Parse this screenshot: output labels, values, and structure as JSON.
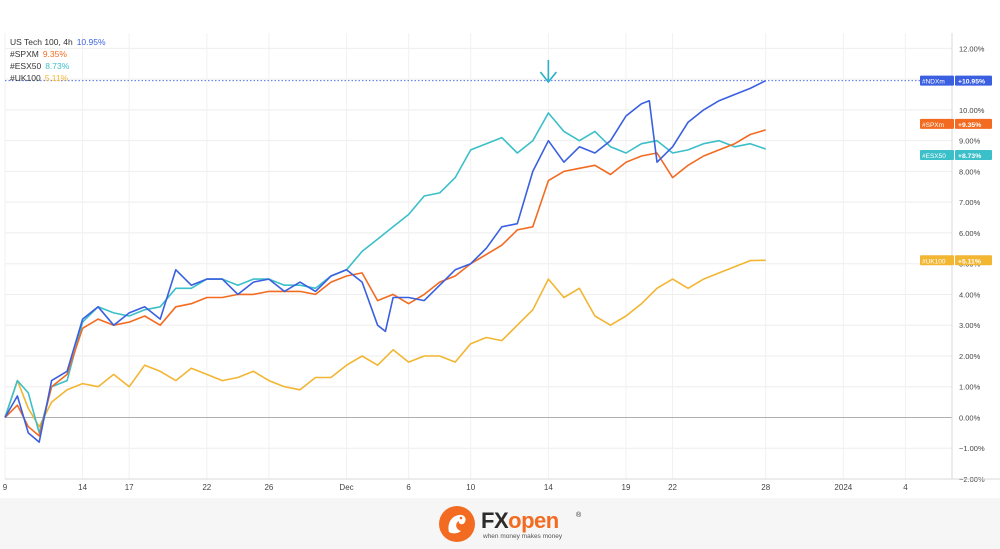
{
  "legend": [
    {
      "name": "US Tech 100, 4h",
      "value": "10.95%",
      "color": "#3a5fe0"
    },
    {
      "name": "#SPXM",
      "value": "9.35%",
      "color": "#f26b21"
    },
    {
      "name": "#ESX50",
      "value": "8.73%",
      "color": "#3bbfc9"
    },
    {
      "name": "#UK100",
      "value": "5.11%",
      "color": "#f2b632"
    }
  ],
  "logo": {
    "brand_part1": "FX",
    "brand_part2": "open",
    "registered": "®",
    "tagline": "when money makes money"
  },
  "chart_data": {
    "type": "line",
    "x_ticks": [
      "9",
      "14",
      "17",
      "22",
      "26",
      "Dec",
      "6",
      "10",
      "14",
      "19",
      "22",
      "28",
      "2024",
      "4"
    ],
    "x_tick_positions": [
      0,
      5,
      8,
      13,
      17,
      22,
      26,
      30,
      35,
      40,
      43,
      49,
      54,
      58
    ],
    "xlim": [
      0,
      61
    ],
    "ylim": [
      -2,
      12.5
    ],
    "y_ticks": [
      "12.00%",
      "11.00%",
      "10.00%",
      "9.00%",
      "8.00%",
      "7.00%",
      "6.00%",
      "5.00%",
      "4.00%",
      "3.00%",
      "2.00%",
      "1.00%",
      "0.00%",
      "−1.00%",
      "−2.00%"
    ],
    "y_tick_values": [
      12,
      11,
      10,
      9,
      8,
      7,
      6,
      5,
      4,
      3,
      2,
      1,
      0,
      -1,
      -2
    ],
    "marker_x": 35,
    "series": [
      {
        "name": "#NDXm",
        "label": "+10.95%",
        "color": "#3a5fe0",
        "x": [
          0,
          0.8,
          1.5,
          2.2,
          3,
          4,
          5,
          6,
          7,
          8,
          9,
          10,
          11,
          12,
          13,
          14,
          15,
          16,
          17,
          18,
          19,
          20,
          21,
          22,
          23,
          24,
          24.5,
          25,
          26,
          27,
          28,
          29,
          30,
          31,
          32,
          33,
          34,
          35,
          36,
          37,
          38,
          39,
          40,
          41,
          41.5,
          42,
          43,
          44,
          45,
          46,
          47,
          48,
          49
        ],
        "y": [
          0,
          0.7,
          -0.5,
          -0.8,
          1.2,
          1.5,
          3.2,
          3.6,
          3.0,
          3.4,
          3.6,
          3.2,
          4.8,
          4.3,
          4.5,
          4.5,
          4.0,
          4.4,
          4.5,
          4.1,
          4.4,
          4.1,
          4.6,
          4.8,
          4.4,
          3.0,
          2.8,
          3.9,
          3.9,
          3.8,
          4.3,
          4.8,
          5.0,
          5.5,
          6.2,
          6.3,
          8.0,
          9.0,
          8.3,
          8.8,
          8.6,
          9.0,
          9.8,
          10.2,
          10.3,
          8.3,
          8.8,
          9.6,
          10.0,
          10.3,
          10.5,
          10.7,
          10.95
        ]
      },
      {
        "name": "#SPXm",
        "label": "+9.35%",
        "color": "#f26b21",
        "x": [
          0,
          0.8,
          1.5,
          2.2,
          3,
          4,
          5,
          6,
          7,
          8,
          9,
          10,
          11,
          12,
          13,
          14,
          15,
          16,
          17,
          18,
          19,
          20,
          21,
          22,
          23,
          24,
          25,
          26,
          27,
          28,
          29,
          30,
          31,
          32,
          33,
          34,
          35,
          36,
          37,
          38,
          39,
          40,
          41,
          42,
          43,
          44,
          45,
          46,
          47,
          48,
          49
        ],
        "y": [
          0,
          0.4,
          -0.3,
          -0.6,
          1.0,
          1.4,
          2.9,
          3.2,
          3.0,
          3.1,
          3.3,
          3.0,
          3.6,
          3.7,
          3.9,
          3.9,
          4.0,
          4.0,
          4.1,
          4.1,
          4.1,
          4.0,
          4.4,
          4.6,
          4.7,
          3.8,
          4.0,
          3.7,
          4.0,
          4.4,
          4.6,
          5.0,
          5.3,
          5.6,
          6.1,
          6.2,
          7.7,
          8.0,
          8.1,
          8.2,
          7.9,
          8.3,
          8.5,
          8.6,
          7.8,
          8.2,
          8.5,
          8.7,
          8.9,
          9.2,
          9.35
        ]
      },
      {
        "name": "#ESX50",
        "label": "+8.73%",
        "color": "#3bbfc9",
        "x": [
          0,
          0.8,
          1.5,
          2.2,
          3,
          4,
          5,
          6,
          7,
          8,
          9,
          10,
          11,
          12,
          13,
          14,
          15,
          16,
          17,
          18,
          19,
          20,
          21,
          22,
          23,
          24,
          25,
          26,
          27,
          28,
          29,
          30,
          31,
          32,
          33,
          34,
          35,
          36,
          37,
          38,
          39,
          40,
          41,
          42,
          43,
          44,
          45,
          46,
          47,
          48,
          49
        ],
        "y": [
          0,
          1.2,
          0.8,
          -0.5,
          1.0,
          1.2,
          3.1,
          3.6,
          3.4,
          3.3,
          3.5,
          3.6,
          4.2,
          4.2,
          4.5,
          4.5,
          4.3,
          4.5,
          4.5,
          4.3,
          4.3,
          4.2,
          4.6,
          4.8,
          5.4,
          5.8,
          6.2,
          6.6,
          7.2,
          7.3,
          7.8,
          8.7,
          8.9,
          9.1,
          8.6,
          9.0,
          9.9,
          9.3,
          9.0,
          9.3,
          8.8,
          8.6,
          8.9,
          9.0,
          8.6,
          8.7,
          8.9,
          9.0,
          8.8,
          8.9,
          8.73
        ]
      },
      {
        "name": "#UK100",
        "label": "+5.11%",
        "color": "#f2b632",
        "x": [
          0,
          0.8,
          1.5,
          2.2,
          3,
          4,
          5,
          6,
          7,
          8,
          9,
          10,
          11,
          12,
          13,
          14,
          15,
          16,
          17,
          18,
          19,
          20,
          21,
          22,
          23,
          24,
          25,
          26,
          27,
          28,
          29,
          30,
          31,
          32,
          33,
          34,
          35,
          36,
          37,
          38,
          39,
          40,
          41,
          42,
          43,
          44,
          45,
          46,
          47,
          48,
          49
        ],
        "y": [
          0,
          1.2,
          0.3,
          -0.3,
          0.5,
          0.9,
          1.1,
          1.0,
          1.4,
          1.0,
          1.7,
          1.5,
          1.2,
          1.6,
          1.4,
          1.2,
          1.3,
          1.5,
          1.2,
          1.0,
          0.9,
          1.3,
          1.3,
          1.7,
          2.0,
          1.7,
          2.2,
          1.8,
          2.0,
          2.0,
          1.8,
          2.4,
          2.6,
          2.5,
          3.0,
          3.5,
          4.5,
          3.9,
          4.2,
          3.3,
          3.0,
          3.3,
          3.7,
          4.2,
          4.5,
          4.2,
          4.5,
          4.7,
          4.9,
          5.1,
          5.11
        ]
      }
    ]
  }
}
